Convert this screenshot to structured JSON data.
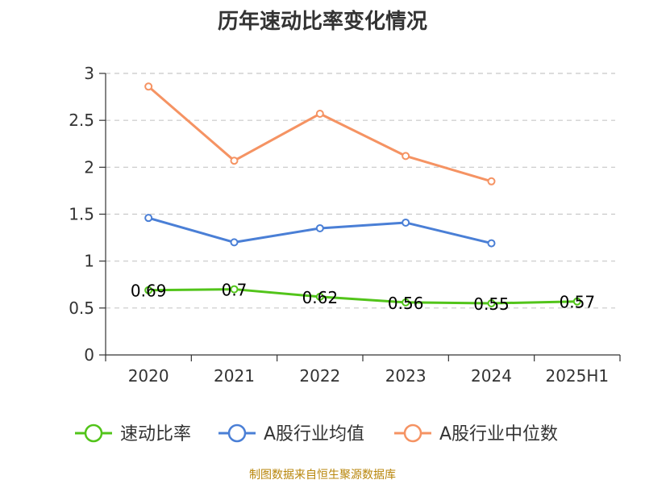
{
  "chart_data": {
    "type": "line",
    "title": "历年速动比率变化情况",
    "categories": [
      "2020",
      "2021",
      "2022",
      "2023",
      "2024",
      "2025H1"
    ],
    "ylim": [
      0,
      3
    ],
    "yticks": [
      "0",
      "0.5",
      "1",
      "1.5",
      "2",
      "2.5",
      "3"
    ],
    "grid": true,
    "legend_position": "bottom",
    "series": [
      {
        "name": "速动比率",
        "color": "#52c41a",
        "values": [
          0.69,
          0.7,
          0.62,
          0.56,
          0.55,
          0.57
        ],
        "labels": [
          "0.69",
          "0.7",
          "0.62",
          "0.56",
          "0.55",
          "0.57"
        ]
      },
      {
        "name": "A股行业均值",
        "color": "#4a7fd6",
        "values": [
          1.46,
          1.2,
          1.35,
          1.41,
          1.19,
          null
        ]
      },
      {
        "name": "A股行业中位数",
        "color": "#f59363",
        "values": [
          2.86,
          2.07,
          2.57,
          2.12,
          1.85,
          null
        ]
      }
    ]
  },
  "source": "制图数据来自恒生聚源数据库"
}
